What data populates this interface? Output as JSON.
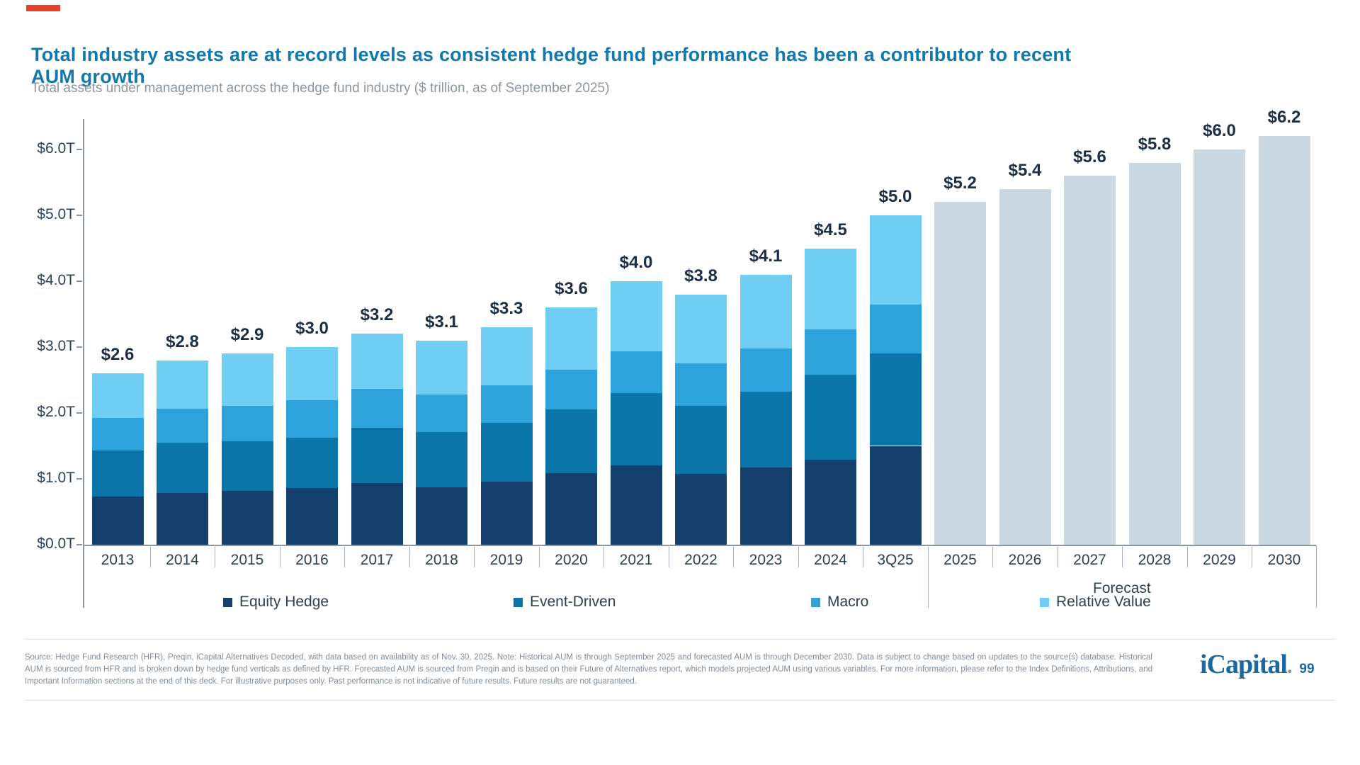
{
  "accent": {
    "dash_color": "#e8402f"
  },
  "header": {
    "title": "Total industry assets are at record levels as consistent hedge fund performance has been a contributor to recent AUM growth",
    "subtitle": "Total assets under management across the hedge fund industry ($ trillion, as of September 2025)"
  },
  "chart_data": {
    "type": "bar",
    "stacked": true,
    "title": "Total assets under management across the hedge fund industry",
    "unit": "$ trillion",
    "ylim": [
      0,
      6.5
    ],
    "grid": false,
    "y_ticks": [
      "$0.0T",
      "$1.0T",
      "$2.0T",
      "$3.0T",
      "$4.0T",
      "$5.0T",
      "$6.0T"
    ],
    "categories": [
      "2013",
      "2014",
      "2015",
      "2016",
      "2017",
      "2018",
      "2019",
      "2020",
      "2021",
      "2022",
      "2023",
      "2024",
      "3Q25",
      "2025",
      "2026",
      "2027",
      "2028",
      "2029",
      "2030"
    ],
    "bar_labels": [
      "$2.6",
      "$2.8",
      "$2.9",
      "$3.0",
      "$3.2",
      "$3.1",
      "$3.3",
      "$3.6",
      "$4.0",
      "$3.8",
      "$4.1",
      "$4.5",
      "$5.0",
      "$5.2",
      "$5.4",
      "$5.6",
      "$5.8",
      "$6.0",
      "$6.2"
    ],
    "totals": [
      2.6,
      2.8,
      2.9,
      3.0,
      3.2,
      3.1,
      3.3,
      3.6,
      4.0,
      3.8,
      4.1,
      4.5,
      5.0,
      5.2,
      5.4,
      5.6,
      5.8,
      6.0,
      6.2
    ],
    "series": [
      {
        "name": "Equity Hedge",
        "color": "#15406d",
        "values": [
          0.73,
          0.78,
          0.82,
          0.86,
          0.94,
          0.87,
          0.96,
          1.09,
          1.2,
          1.07,
          1.17,
          1.29,
          1.5
        ]
      },
      {
        "name": "Event-Driven",
        "color": "#0b74a9",
        "values": [
          0.7,
          0.77,
          0.75,
          0.76,
          0.83,
          0.84,
          0.89,
          0.96,
          1.1,
          1.04,
          1.15,
          1.29,
          1.4
        ]
      },
      {
        "name": "Macro",
        "color": "#2ea2da",
        "values": [
          0.49,
          0.51,
          0.54,
          0.57,
          0.6,
          0.57,
          0.57,
          0.61,
          0.64,
          0.64,
          0.66,
          0.69,
          0.74
        ]
      },
      {
        "name": "Relative Value",
        "color": "#70cef4",
        "values": [
          0.68,
          0.74,
          0.79,
          0.81,
          0.83,
          0.82,
          0.88,
          0.94,
          1.06,
          1.05,
          1.12,
          1.23,
          1.36
        ]
      }
    ],
    "forecast": {
      "label": "Forecast",
      "color": "#cbd8e2",
      "categories": [
        "2025",
        "2026",
        "2027",
        "2028",
        "2029",
        "2030"
      ],
      "values": [
        5.2,
        5.4,
        5.6,
        5.8,
        6.0,
        6.2
      ]
    },
    "legend_position": "bottom"
  },
  "legend": {
    "items": [
      {
        "label": "Equity Hedge",
        "color": "#15406d"
      },
      {
        "label": "Event-Driven",
        "color": "#0b74a9"
      },
      {
        "label": "Macro",
        "color": "#2ea2da"
      },
      {
        "label": "Relative Value",
        "color": "#70cef4"
      }
    ]
  },
  "footer": {
    "source_text": "Source: Hedge Fund Research (HFR), Preqin, iCapital Alternatives Decoded, with data based on availability as of Nov. 30, 2025. Note: Historical AUM is through September 2025 and forecasted AUM is through December 2030. Data is subject to change based on updates to the source(s) database. Historical AUM is sourced from HFR and is broken down by hedge fund verticals as defined by HFR. Forecasted AUM is sourced from Preqin and is based on their Future of Alternatives report, which models projected AUM using various variables. For more information, please refer to the Index Definitions, Attributions, and Important Information sections at the end of this deck. For illustrative purposes only. Past performance is not indicative of future results. Future results are not guaranteed.",
    "logo_word": "iCapital",
    "logo_period": ".",
    "page_number": "99"
  }
}
